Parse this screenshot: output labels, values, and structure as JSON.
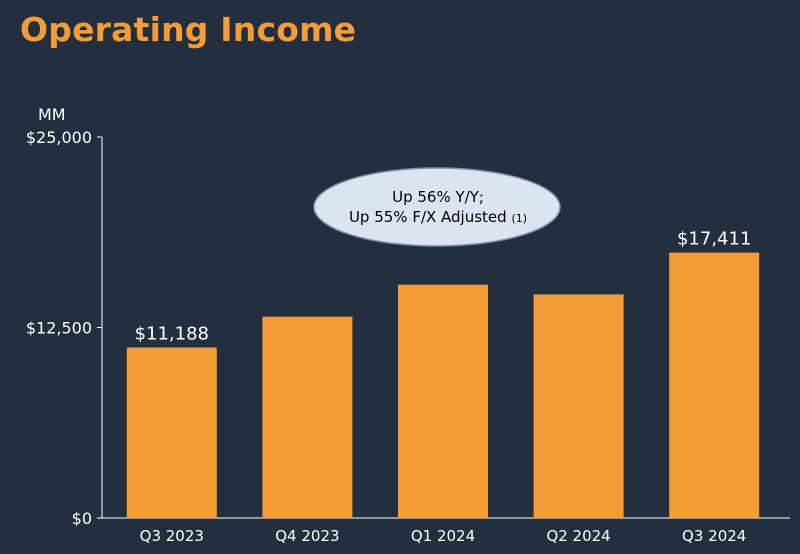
{
  "slide": {
    "title": "Operating Income"
  },
  "chart_data": {
    "type": "bar",
    "title": "Operating Income",
    "unit_label": "MM",
    "categories": [
      "Q3 2023",
      "Q4 2023",
      "Q1 2024",
      "Q2 2024",
      "Q3 2024"
    ],
    "values": [
      11188,
      13209,
      15307,
      14672,
      17411
    ],
    "data_labels": [
      "$11,188",
      null,
      null,
      null,
      "$17,411"
    ],
    "ylim": [
      0,
      25000
    ],
    "yticks": [
      {
        "value": 0,
        "label": "$0"
      },
      {
        "value": 12500,
        "label": "$12,500"
      },
      {
        "value": 25000,
        "label": "$25,000"
      }
    ],
    "grid": false,
    "bar_color": "#f29d38",
    "callout": {
      "line1": "Up 56% Y/Y;",
      "line2": "Up 55% F/X Adjusted",
      "footnote": "(1)"
    }
  },
  "colors": {
    "background": "#232f3e",
    "accent": "#f29d38",
    "callout_fill": "#dbe4f0"
  }
}
